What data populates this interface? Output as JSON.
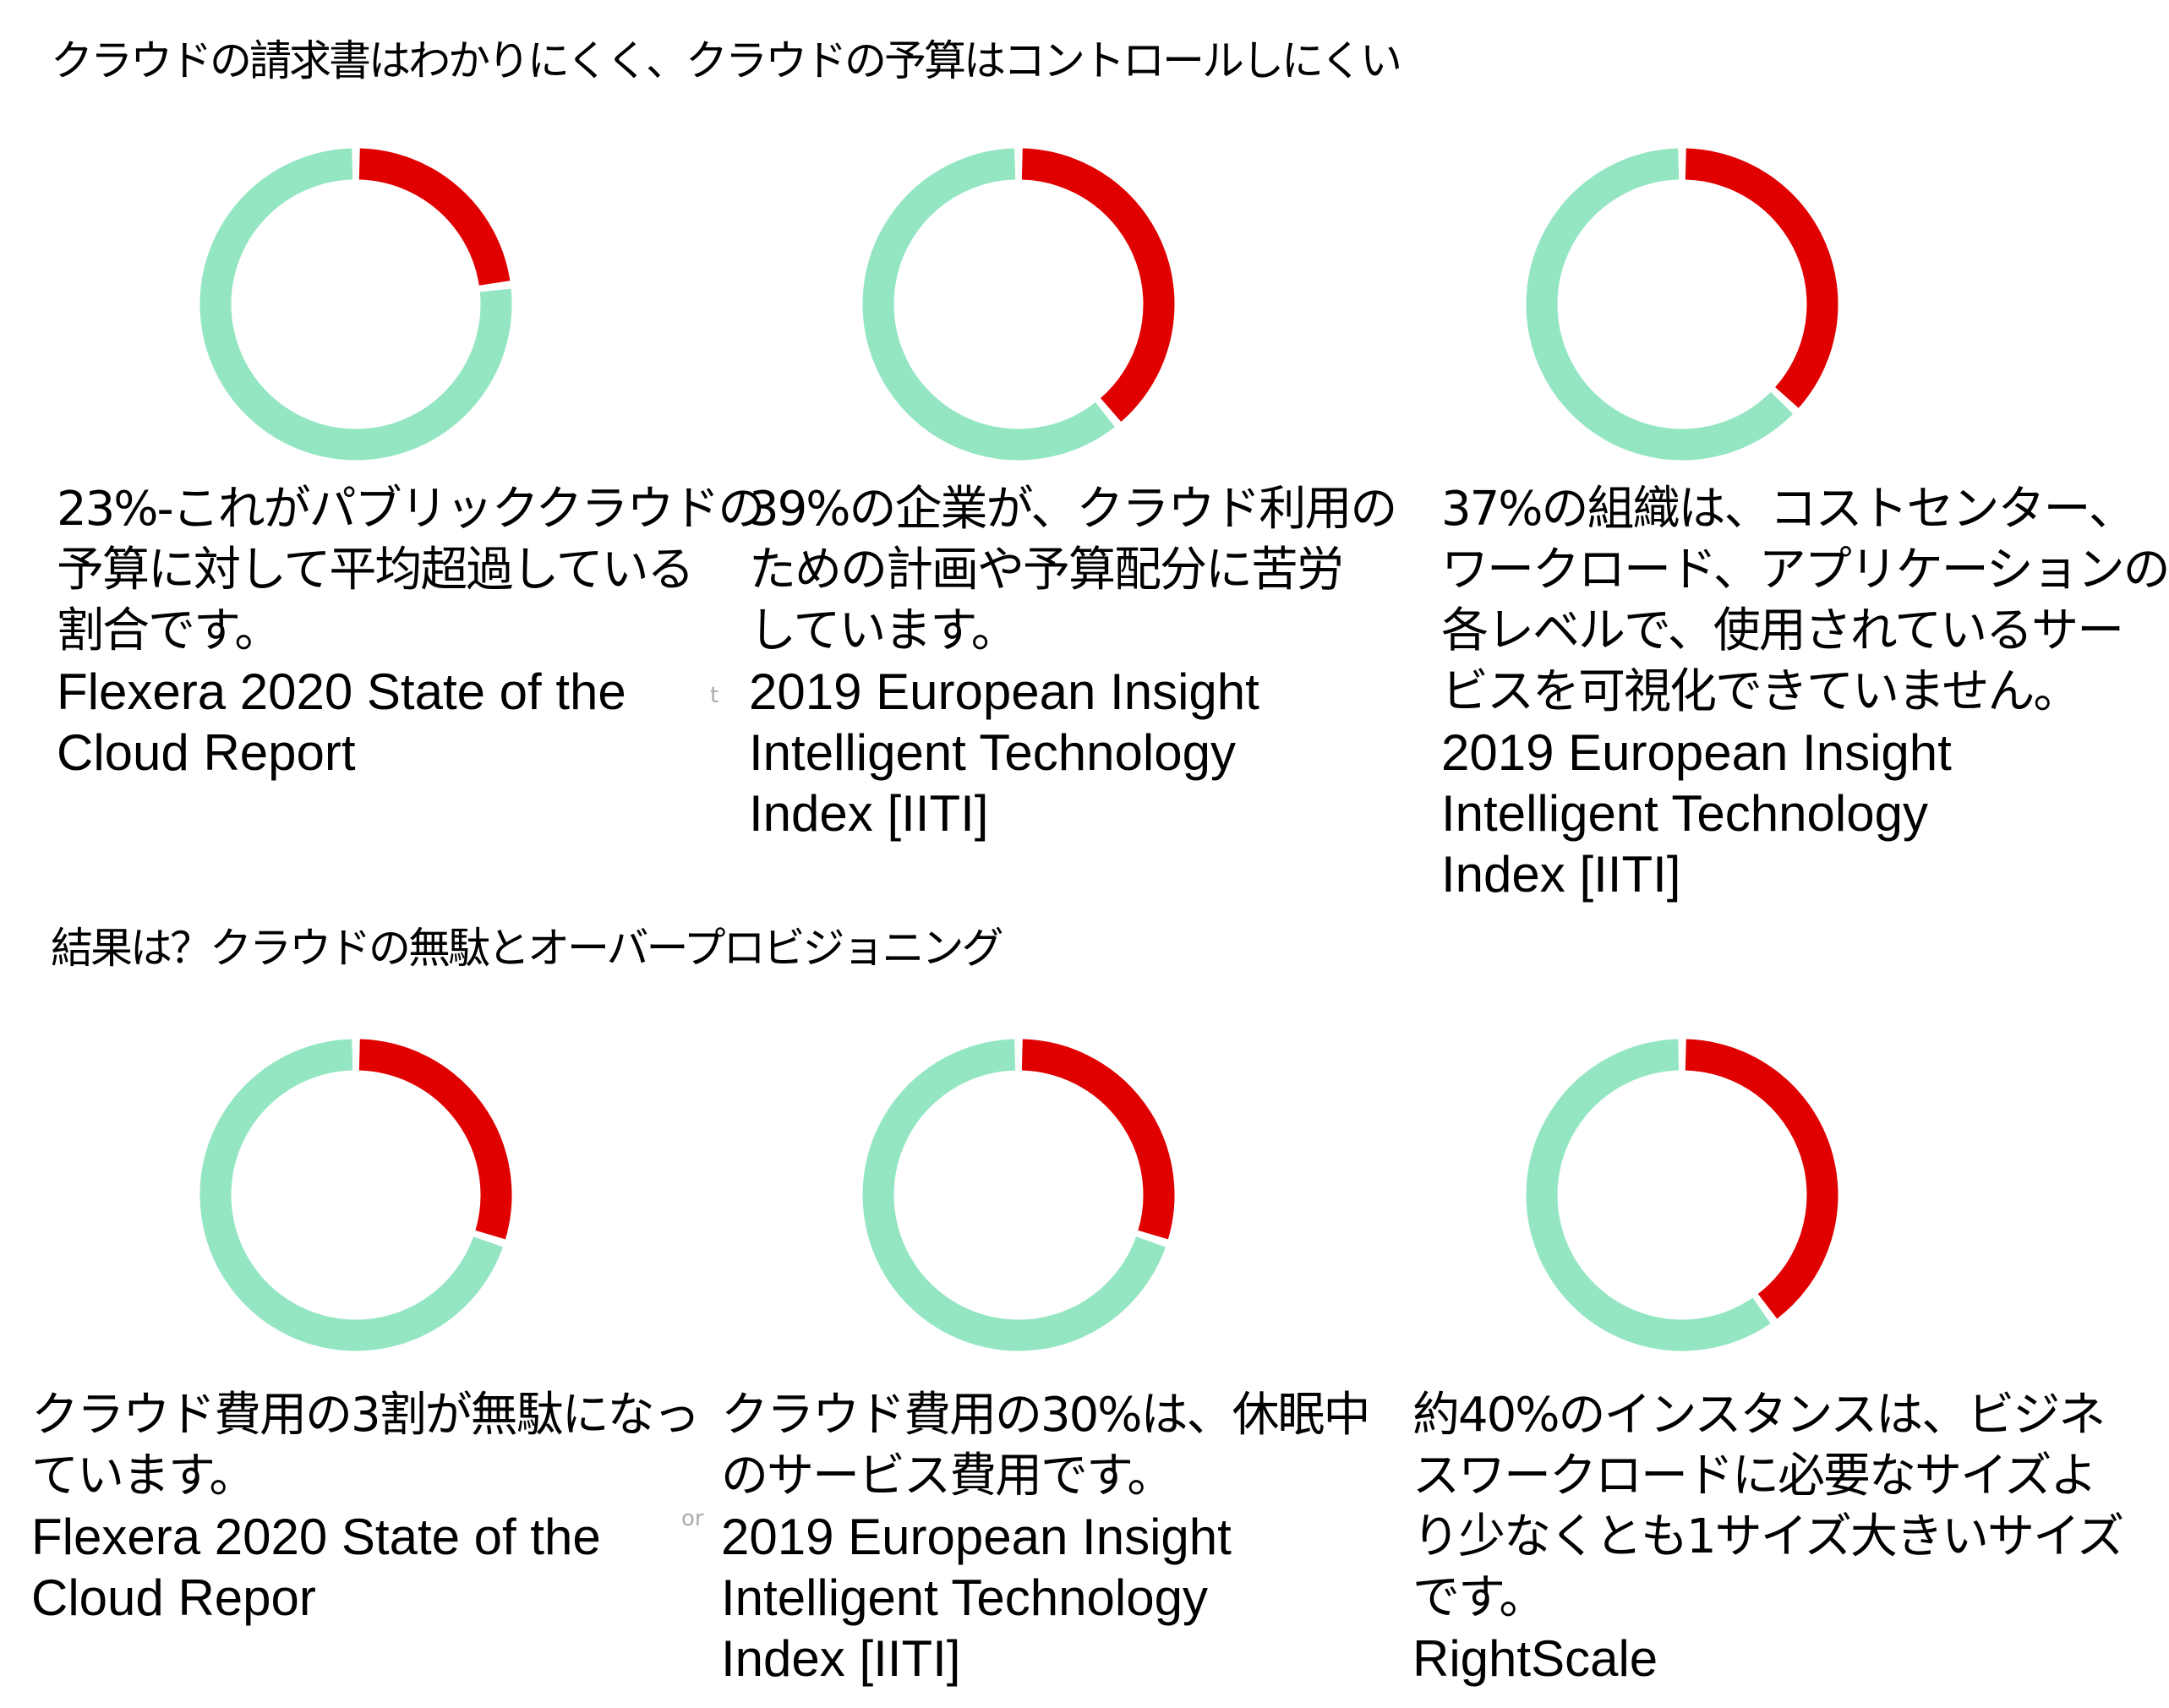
{
  "headings": {
    "section1": "クラウドの請求書はわかりにくく、クラウドの予算はコントロールしにくい",
    "section2": "結果は？クラウドの無駄とオーバープロビジョニング"
  },
  "colors": {
    "highlight": "#e00000",
    "remainder": "#94e6c3"
  },
  "chart_data": [
    {
      "type": "pie",
      "variant": "donut",
      "values": [
        23,
        77
      ],
      "highlight_percent": 23
    },
    {
      "type": "pie",
      "variant": "donut",
      "values": [
        39,
        61
      ],
      "highlight_percent": 39
    },
    {
      "type": "pie",
      "variant": "donut",
      "values": [
        37,
        63
      ],
      "highlight_percent": 37
    },
    {
      "type": "pie",
      "variant": "donut",
      "values": [
        30,
        70
      ],
      "highlight_percent": 30
    },
    {
      "type": "pie",
      "variant": "donut",
      "values": [
        30,
        70
      ],
      "highlight_percent": 30
    },
    {
      "type": "pie",
      "variant": "donut",
      "values": [
        40,
        60
      ],
      "highlight_percent": 40
    }
  ],
  "stats": [
    {
      "text": [
        "23%-これがパブリッククラウドの",
        "予算に対して平均超過している",
        "割合です。"
      ],
      "source": [
        "Flexera 2020 State of the",
        "Cloud Report"
      ]
    },
    {
      "text": [
        "39%の企業が、クラウド利用の",
        "ための計画や予算配分に苦労",
        "しています。"
      ],
      "source": [
        "2019 European Insight",
        "Intelligent Technology",
        "Index [IITI]"
      ]
    },
    {
      "text": [
        "37%の組織は、コストセンター、",
        "ワークロード、アプリケーションの",
        "各レベルで、使用されているサー",
        "ビスを可視化できていません。"
      ],
      "source": [
        "2019 European Insight",
        "Intelligent Technology",
        "Index [IITI]"
      ]
    },
    {
      "text": [
        "クラウド費用の3割が無駄になっ",
        "ています。"
      ],
      "source": [
        "Flexera 2020 State of the",
        "Cloud Repor"
      ]
    },
    {
      "text": [
        "クラウド費用の30%は、休眠中",
        "のサービス費用です。"
      ],
      "source": [
        "2019 European Insight",
        "Intelligent Technology",
        "Index [IITI]"
      ]
    },
    {
      "text": [
        "約40%のインスタンスは、ビジネ",
        "スワークロードに必要なサイズよ",
        "り少なくとも1サイズ大きいサイズ",
        "です。"
      ],
      "source": [
        "RightScale"
      ]
    }
  ],
  "artifacts": {
    "a1": "t",
    "a2": "or"
  }
}
